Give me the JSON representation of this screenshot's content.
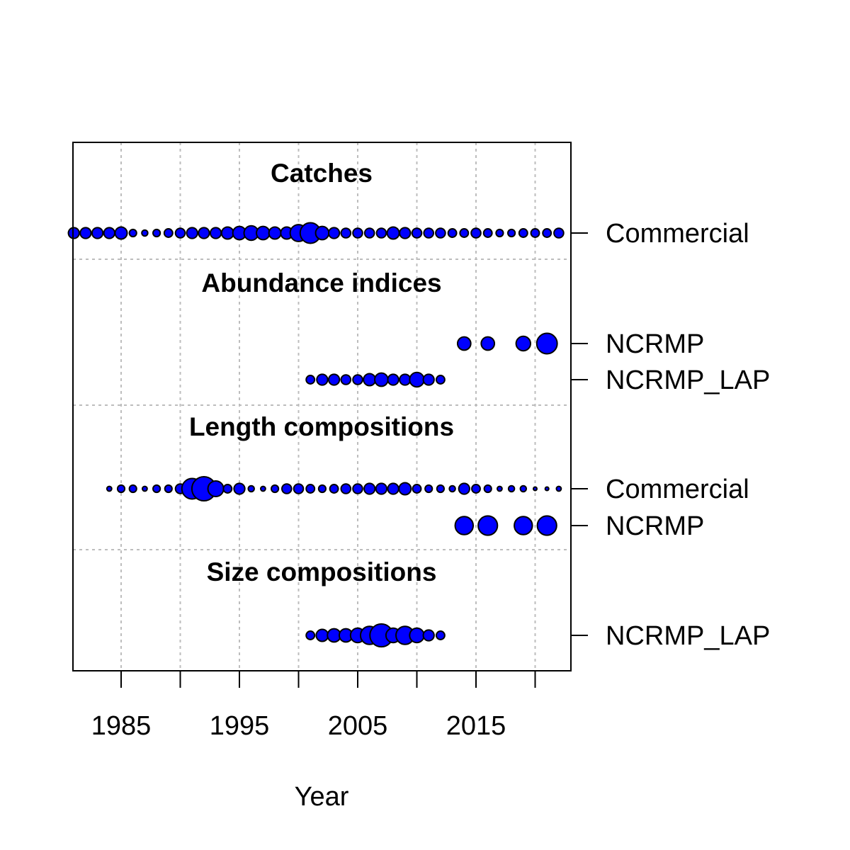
{
  "chart_data": {
    "type": "scatter",
    "subtype": "data-availability bubble plot",
    "xlabel": "Year",
    "xlim": [
      1981,
      2023
    ],
    "x_ticks": [
      1985,
      1990,
      1995,
      2000,
      2005,
      2010,
      2015,
      2020
    ],
    "x_tick_labels": [
      "1985",
      "",
      "1995",
      "",
      "2005",
      "",
      "2015",
      ""
    ],
    "grid": true,
    "point_color": "#0000ff",
    "point_edge_color": "#000000",
    "sections": [
      {
        "title": "Catches",
        "series": [
          {
            "name": "Commercial",
            "x": [
              1981,
              1982,
              1983,
              1984,
              1985,
              1986,
              1987,
              1988,
              1989,
              1990,
              1991,
              1992,
              1993,
              1994,
              1995,
              1996,
              1997,
              1998,
              1999,
              2000,
              2001,
              2002,
              2003,
              2004,
              2005,
              2006,
              2007,
              2008,
              2009,
              2010,
              2011,
              2012,
              2013,
              2014,
              2015,
              2016,
              2017,
              2018,
              2019,
              2020,
              2021,
              2022
            ],
            "size": [
              0.45,
              0.45,
              0.45,
              0.45,
              0.5,
              0.3,
              0.25,
              0.3,
              0.35,
              0.4,
              0.45,
              0.45,
              0.45,
              0.5,
              0.55,
              0.6,
              0.55,
              0.5,
              0.5,
              0.7,
              0.85,
              0.55,
              0.45,
              0.4,
              0.4,
              0.4,
              0.4,
              0.5,
              0.45,
              0.4,
              0.4,
              0.4,
              0.35,
              0.35,
              0.4,
              0.35,
              0.3,
              0.3,
              0.35,
              0.35,
              0.35,
              0.4
            ]
          }
        ]
      },
      {
        "title": "Abundance indices",
        "series": [
          {
            "name": "NCRMP",
            "x": [
              2014,
              2016,
              2019,
              2021
            ],
            "size": [
              0.55,
              0.55,
              0.6,
              0.85
            ]
          },
          {
            "name": "NCRMP_LAP",
            "x": [
              2001,
              2002,
              2003,
              2004,
              2005,
              2006,
              2007,
              2008,
              2009,
              2010,
              2011,
              2012
            ],
            "size": [
              0.35,
              0.45,
              0.45,
              0.4,
              0.4,
              0.5,
              0.55,
              0.45,
              0.45,
              0.6,
              0.45,
              0.35
            ]
          }
        ]
      },
      {
        "title": "Length compositions",
        "series": [
          {
            "name": "Commercial",
            "x": [
              1984,
              1985,
              1986,
              1987,
              1988,
              1989,
              1990,
              1991,
              1992,
              1993,
              1994,
              1995,
              1996,
              1997,
              1998,
              1999,
              2000,
              2001,
              2002,
              2003,
              2004,
              2005,
              2006,
              2007,
              2008,
              2009,
              2010,
              2011,
              2012,
              2013,
              2014,
              2015,
              2016,
              2017,
              2018,
              2019,
              2020,
              2021,
              2022
            ],
            "size": [
              0.2,
              0.3,
              0.3,
              0.2,
              0.3,
              0.3,
              0.4,
              0.85,
              1.0,
              0.65,
              0.35,
              0.45,
              0.25,
              0.2,
              0.3,
              0.4,
              0.4,
              0.35,
              0.3,
              0.35,
              0.4,
              0.4,
              0.45,
              0.45,
              0.45,
              0.5,
              0.35,
              0.3,
              0.3,
              0.25,
              0.45,
              0.35,
              0.3,
              0.2,
              0.25,
              0.25,
              0.1,
              0.15,
              0.2
            ]
          },
          {
            "name": "NCRMP",
            "x": [
              2014,
              2016,
              2019,
              2021
            ],
            "size": [
              0.75,
              0.8,
              0.75,
              0.8
            ]
          }
        ]
      },
      {
        "title": "Size compositions",
        "series": [
          {
            "name": "NCRMP_LAP",
            "x": [
              2001,
              2002,
              2003,
              2004,
              2005,
              2006,
              2007,
              2008,
              2009,
              2010,
              2011,
              2012
            ],
            "size": [
              0.35,
              0.5,
              0.55,
              0.55,
              0.6,
              0.75,
              0.95,
              0.6,
              0.75,
              0.6,
              0.45,
              0.35
            ]
          }
        ]
      }
    ]
  }
}
